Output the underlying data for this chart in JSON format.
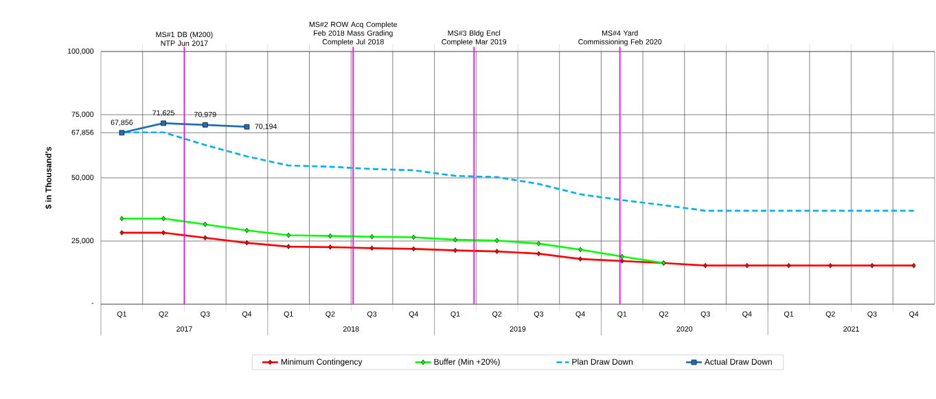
{
  "chart_data": {
    "type": "line",
    "ylabel": "$ in Thousand's",
    "categories": [
      "Q1",
      "Q2",
      "Q3",
      "Q4",
      "Q1",
      "Q2",
      "Q3",
      "Q4",
      "Q1",
      "Q2",
      "Q3",
      "Q4",
      "Q1",
      "Q2",
      "Q3",
      "Q4",
      "Q1",
      "Q2",
      "Q3",
      "Q4"
    ],
    "annotations": [
      "MS#1 DB (M200) NTP Jun 2017",
      "MS#2 ROW Acq Complete Feb 2018 Mass Grading Complete Jul 2018",
      "MS#3 Bldg Encl Complete Mar 2019",
      "MS#4 Yard Commissioning Feb 2020",
      "2017",
      "2018",
      "2019",
      "2020",
      "2021"
    ],
    "ylim": [
      0,
      100000
    ],
    "yticks": [
      {
        "value": 0,
        "label": "-"
      },
      {
        "value": 25000,
        "label": "25,000"
      },
      {
        "value": 50000,
        "label": "50,000"
      },
      {
        "value": 67856,
        "label": "67,856"
      },
      {
        "value": 75000,
        "label": "75,000"
      },
      {
        "value": 100000,
        "label": "100,000"
      }
    ],
    "grid": true,
    "legend": "bottom",
    "series": [
      {
        "name": "Minimum Contingency",
        "color": "#ff0000",
        "marker": "diamond",
        "values": [
          28300,
          28300,
          26300,
          24300,
          22800,
          22600,
          22200,
          21900,
          21300,
          20900,
          20000,
          17900,
          17100,
          16300,
          15300,
          15300,
          15300,
          15300,
          15300,
          15300
        ]
      },
      {
        "name": "Buffer (Min +20%)",
        "color": "#00ff00",
        "marker": "diamond",
        "values": [
          33900,
          33900,
          31600,
          29200,
          27300,
          27000,
          26700,
          26500,
          25500,
          25200,
          24000,
          21600,
          18900,
          16300,
          null,
          null,
          null,
          null,
          null,
          null
        ]
      },
      {
        "name": "Plan Draw Down",
        "color": "#00b0f0",
        "marker": "none",
        "line_style": "dashed",
        "values": [
          68000,
          68000,
          63000,
          58500,
          54900,
          54400,
          53500,
          53000,
          50800,
          50300,
          47600,
          43500,
          41200,
          39200,
          37000,
          37000,
          37000,
          37000,
          37000,
          37000
        ]
      },
      {
        "name": "Actual Draw Down",
        "color": "#1f6fb4",
        "marker": "square",
        "values": [
          67856,
          71625,
          70979,
          70194,
          null,
          null,
          null,
          null,
          null,
          null,
          null,
          null,
          null,
          null,
          null,
          null,
          null,
          null,
          null,
          null
        ],
        "value_labels": [
          "67,856",
          "71,625",
          "70,979",
          "70,194",
          null,
          null,
          null,
          null,
          null,
          null,
          null,
          null,
          null,
          null,
          null,
          null,
          null,
          null,
          null,
          null
        ]
      }
    ]
  }
}
